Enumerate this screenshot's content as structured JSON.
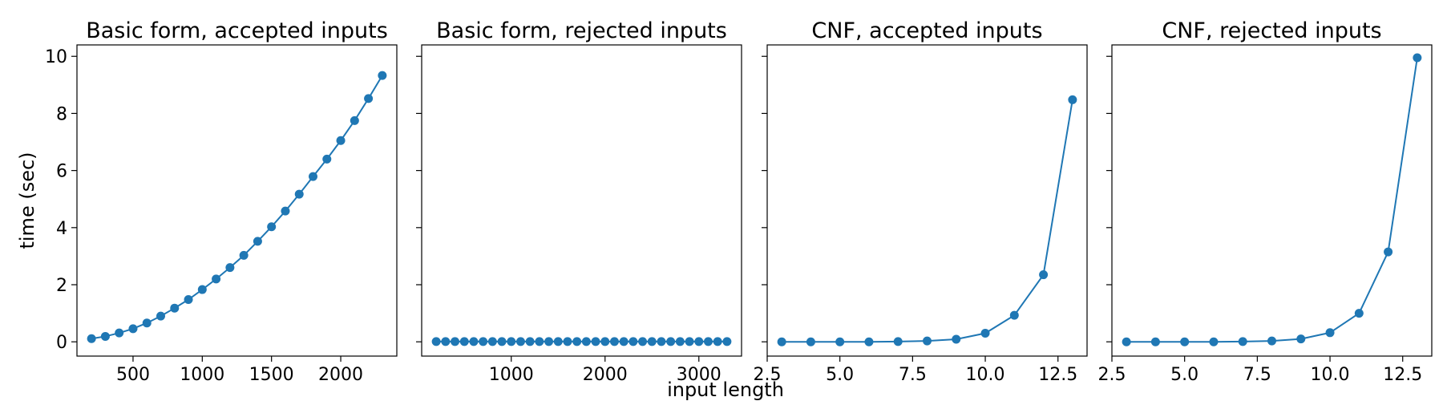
{
  "figure": {
    "ylabel": "time (sec)",
    "xlabel": "input length"
  },
  "chart_data": [
    {
      "type": "line",
      "title": "Basic form, accepted inputs",
      "x": [
        200,
        300,
        400,
        500,
        600,
        700,
        800,
        900,
        1000,
        1100,
        1200,
        1300,
        1400,
        1500,
        1600,
        1700,
        1800,
        1900,
        2000,
        2100,
        2200,
        2300
      ],
      "series": [
        {
          "values": [
            0.11,
            0.19,
            0.31,
            0.46,
            0.66,
            0.9,
            1.18,
            1.48,
            1.83,
            2.2,
            2.6,
            3.03,
            3.52,
            4.03,
            4.58,
            5.17,
            5.79,
            6.4,
            7.05,
            7.75,
            8.52,
            9.33
          ],
          "color": "#1f77b4"
        }
      ],
      "xlim": [
        95,
        2405
      ],
      "xticks": [
        500,
        1000,
        1500,
        2000
      ],
      "ylim": [
        -0.5,
        10.4
      ],
      "yticks": [
        0,
        2,
        4,
        6,
        8,
        10
      ],
      "show_ytick_labels": true,
      "grid": false
    },
    {
      "type": "line",
      "title": "Basic form, rejected inputs",
      "x": [
        200,
        300,
        400,
        500,
        600,
        700,
        800,
        900,
        1000,
        1100,
        1200,
        1300,
        1400,
        1500,
        1600,
        1700,
        1800,
        1900,
        2000,
        2100,
        2200,
        2300,
        2400,
        2500,
        2600,
        2700,
        2800,
        2900,
        3000,
        3100,
        3200,
        3300
      ],
      "series": [
        {
          "values": [
            0.01,
            0.01,
            0.01,
            0.01,
            0.01,
            0.01,
            0.01,
            0.01,
            0.01,
            0.01,
            0.01,
            0.01,
            0.01,
            0.01,
            0.01,
            0.01,
            0.01,
            0.01,
            0.01,
            0.01,
            0.01,
            0.01,
            0.01,
            0.01,
            0.01,
            0.01,
            0.01,
            0.01,
            0.01,
            0.01,
            0.01,
            0.01
          ],
          "color": "#1f77b4"
        }
      ],
      "xlim": [
        45,
        3455
      ],
      "xticks": [
        1000,
        2000,
        3000
      ],
      "ylim": [
        -0.5,
        10.4
      ],
      "yticks": [
        0,
        2,
        4,
        6,
        8,
        10
      ],
      "show_ytick_labels": false,
      "grid": false
    },
    {
      "type": "line",
      "title": "CNF, accepted inputs",
      "x": [
        3,
        4,
        5,
        6,
        7,
        8,
        9,
        10,
        11,
        12,
        13
      ],
      "series": [
        {
          "values": [
            0.0,
            0.0,
            0.0,
            0.0,
            0.01,
            0.03,
            0.09,
            0.3,
            0.93,
            2.35,
            8.48
          ],
          "color": "#1f77b4"
        }
      ],
      "xlim": [
        2.5,
        13.5
      ],
      "xticks": [
        2.5,
        5.0,
        7.5,
        10.0,
        12.5
      ],
      "xtick_labels": [
        "2.5",
        "5.0",
        "7.5",
        "10.0",
        "12.5"
      ],
      "ylim": [
        -0.5,
        10.4
      ],
      "yticks": [
        0,
        2,
        4,
        6,
        8,
        10
      ],
      "show_ytick_labels": false,
      "grid": false
    },
    {
      "type": "line",
      "title": "CNF, rejected inputs",
      "x": [
        3,
        4,
        5,
        6,
        7,
        8,
        9,
        10,
        11,
        12,
        13
      ],
      "series": [
        {
          "values": [
            0.0,
            0.0,
            0.0,
            0.0,
            0.01,
            0.03,
            0.1,
            0.32,
            1.0,
            3.15,
            9.95
          ],
          "color": "#1f77b4"
        }
      ],
      "xlim": [
        2.5,
        13.5
      ],
      "xticks": [
        2.5,
        5.0,
        7.5,
        10.0,
        12.5
      ],
      "xtick_labels": [
        "2.5",
        "5.0",
        "7.5",
        "10.0",
        "12.5"
      ],
      "ylim": [
        -0.5,
        10.4
      ],
      "yticks": [
        0,
        2,
        4,
        6,
        8,
        10
      ],
      "show_ytick_labels": false,
      "grid": false
    }
  ]
}
